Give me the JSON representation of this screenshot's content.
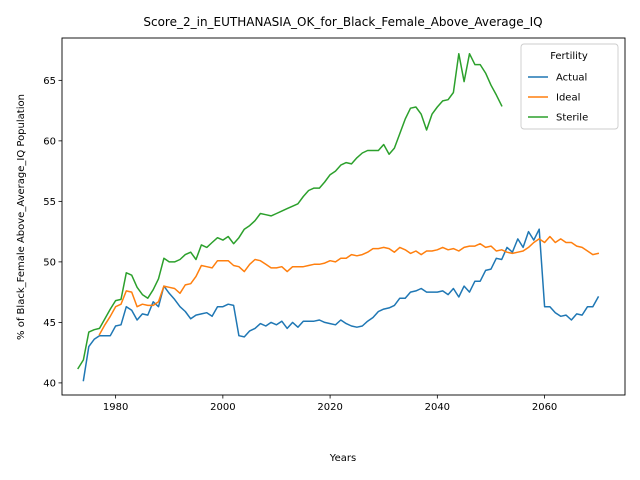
{
  "chart_data": {
    "type": "line",
    "title": "Score_2_in_EUTHANASIA_OK_for_Black_Female_Above_Average_IQ",
    "xlabel": "Years",
    "ylabel": "% of Black_Female Above_Average_IQ Population",
    "xlim": [
      1970,
      2075
    ],
    "ylim": [
      39,
      68.5
    ],
    "xticks": [
      1980,
      2000,
      2020,
      2040,
      2060
    ],
    "yticks": [
      40,
      45,
      50,
      55,
      60,
      65
    ],
    "grid": false,
    "legend": {
      "title": "Fertility",
      "placement": "top-right"
    },
    "series": [
      {
        "name": "Actual",
        "color": "#1f77b4",
        "x": [
          1974,
          1975,
          1976,
          1977,
          1978,
          1979,
          1980,
          1981,
          1982,
          1983,
          1984,
          1985,
          1986,
          1987,
          1988,
          1989,
          1990,
          1991,
          1992,
          1993,
          1994,
          1995,
          1996,
          1997,
          1998,
          1999,
          2000,
          2001,
          2002,
          2003,
          2004,
          2005,
          2006,
          2007,
          2008,
          2009,
          2010,
          2011,
          2012,
          2013,
          2014,
          2015,
          2016,
          2017,
          2018,
          2019,
          2020,
          2021,
          2022,
          2023,
          2024,
          2025,
          2026,
          2027,
          2028,
          2029,
          2030,
          2031,
          2032,
          2033,
          2034,
          2035,
          2036,
          2037,
          2038,
          2039,
          2040,
          2041,
          2042,
          2043,
          2044,
          2045,
          2046,
          2047,
          2048,
          2049,
          2050,
          2051,
          2052,
          2053,
          2054,
          2055,
          2056,
          2057,
          2058,
          2059,
          2060,
          2061,
          2062,
          2063,
          2064,
          2065,
          2066,
          2067,
          2068,
          2069,
          2070
        ],
        "values": [
          40.2,
          43.0,
          43.6,
          43.9,
          43.9,
          43.9,
          44.7,
          44.8,
          46.3,
          46.0,
          45.2,
          45.7,
          45.6,
          46.7,
          46.3,
          48.0,
          47.4,
          46.9,
          46.3,
          45.9,
          45.3,
          45.6,
          45.7,
          45.8,
          45.5,
          46.3,
          46.3,
          46.5,
          46.4,
          43.9,
          43.8,
          44.3,
          44.5,
          44.9,
          44.7,
          45.0,
          44.8,
          45.1,
          44.5,
          45.0,
          44.6,
          45.1,
          45.1,
          45.1,
          45.2,
          45.0,
          44.9,
          44.8,
          45.2,
          44.9,
          44.7,
          44.6,
          44.7,
          45.1,
          45.4,
          45.9,
          46.1,
          46.2,
          46.4,
          47.0,
          47.0,
          47.5,
          47.6,
          47.8,
          47.5,
          47.5,
          47.5,
          47.6,
          47.3,
          47.8,
          47.1,
          48.0,
          47.5,
          48.4,
          48.4,
          49.3,
          49.4,
          50.3,
          50.2,
          51.2,
          50.8,
          51.9,
          51.2,
          52.5,
          51.8,
          52.7,
          46.3,
          46.3,
          45.8,
          45.5,
          45.6,
          45.2,
          45.7,
          45.6,
          46.3,
          46.3,
          47.1
        ]
      },
      {
        "name": "Ideal",
        "color": "#ff7f0e",
        "x": [
          1977,
          1978,
          1979,
          1980,
          1981,
          1982,
          1983,
          1984,
          1985,
          1986,
          1987,
          1988,
          1989,
          1990,
          1991,
          1992,
          1993,
          1994,
          1995,
          1996,
          1997,
          1998,
          1999,
          2000,
          2001,
          2002,
          2003,
          2004,
          2005,
          2006,
          2007,
          2008,
          2009,
          2010,
          2011,
          2012,
          2013,
          2014,
          2015,
          2016,
          2017,
          2018,
          2019,
          2020,
          2021,
          2022,
          2023,
          2024,
          2025,
          2026,
          2027,
          2028,
          2029,
          2030,
          2031,
          2032,
          2033,
          2034,
          2035,
          2036,
          2037,
          2038,
          2039,
          2040,
          2041,
          2042,
          2043,
          2044,
          2045,
          2046,
          2047,
          2048,
          2049,
          2050,
          2051,
          2052,
          2053,
          2054,
          2055,
          2056,
          2057,
          2058,
          2059,
          2060,
          2061,
          2062,
          2063,
          2064,
          2065,
          2066,
          2067,
          2068,
          2069,
          2070
        ],
        "values": [
          44.0,
          44.8,
          45.5,
          46.3,
          46.5,
          47.6,
          47.5,
          46.3,
          46.5,
          46.4,
          46.4,
          46.7,
          48.0,
          47.9,
          47.8,
          47.4,
          48.1,
          48.2,
          48.8,
          49.7,
          49.6,
          49.5,
          50.1,
          50.1,
          50.1,
          49.7,
          49.6,
          49.2,
          49.8,
          50.2,
          50.1,
          49.8,
          49.5,
          49.5,
          49.6,
          49.2,
          49.6,
          49.6,
          49.6,
          49.7,
          49.8,
          49.8,
          49.9,
          50.1,
          50.0,
          50.3,
          50.3,
          50.6,
          50.5,
          50.6,
          50.8,
          51.1,
          51.1,
          51.2,
          51.1,
          50.8,
          51.2,
          51.0,
          50.7,
          50.9,
          50.6,
          50.9,
          50.9,
          51.0,
          51.2,
          51.0,
          51.1,
          50.9,
          51.2,
          51.3,
          51.3,
          51.5,
          51.2,
          51.3,
          50.9,
          51.0,
          50.8,
          50.7,
          50.8,
          50.9,
          51.2,
          51.6,
          51.9,
          51.6,
          52.1,
          51.6,
          51.9,
          51.6,
          51.6,
          51.3,
          51.2,
          50.9,
          50.6,
          50.7
        ]
      },
      {
        "name": "Sterile",
        "color": "#2ca02c",
        "x": [
          1973,
          1974,
          1975,
          1976,
          1977,
          1978,
          1979,
          1980,
          1981,
          1982,
          1983,
          1984,
          1985,
          1986,
          1987,
          1988,
          1989,
          1990,
          1991,
          1992,
          1993,
          1994,
          1995,
          1996,
          1997,
          1998,
          1999,
          2000,
          2001,
          2002,
          2003,
          2004,
          2005,
          2006,
          2007,
          2008,
          2009,
          2010,
          2011,
          2012,
          2013,
          2014,
          2015,
          2016,
          2017,
          2018,
          2019,
          2020,
          2021,
          2022,
          2023,
          2024,
          2025,
          2026,
          2027,
          2028,
          2029,
          2030,
          2031,
          2032,
          2033,
          2034,
          2035,
          2036,
          2037,
          2038,
          2039,
          2040,
          2041,
          2042,
          2043,
          2044,
          2045,
          2046,
          2047,
          2048,
          2049,
          2050,
          2051,
          2052
        ],
        "values": [
          41.2,
          41.9,
          44.2,
          44.4,
          44.5,
          45.3,
          46.1,
          46.8,
          46.9,
          49.1,
          48.9,
          47.9,
          47.3,
          47.0,
          47.7,
          48.6,
          50.3,
          50.0,
          50.0,
          50.2,
          50.6,
          50.8,
          50.2,
          51.4,
          51.2,
          51.6,
          52.0,
          51.8,
          52.1,
          51.5,
          52.0,
          52.7,
          53.0,
          53.4,
          54.0,
          53.9,
          53.8,
          54.0,
          54.2,
          54.4,
          54.6,
          54.8,
          55.4,
          55.9,
          56.1,
          56.1,
          56.6,
          57.2,
          57.5,
          58.0,
          58.2,
          58.1,
          58.6,
          59.0,
          59.2,
          59.2,
          59.2,
          59.7,
          58.9,
          59.4,
          60.6,
          61.8,
          62.7,
          62.8,
          62.2,
          60.9,
          62.2,
          62.8,
          63.3,
          63.4,
          64.0,
          67.2,
          64.9,
          67.2,
          66.3,
          66.3,
          65.6,
          64.6,
          63.8,
          62.9
        ]
      }
    ]
  }
}
